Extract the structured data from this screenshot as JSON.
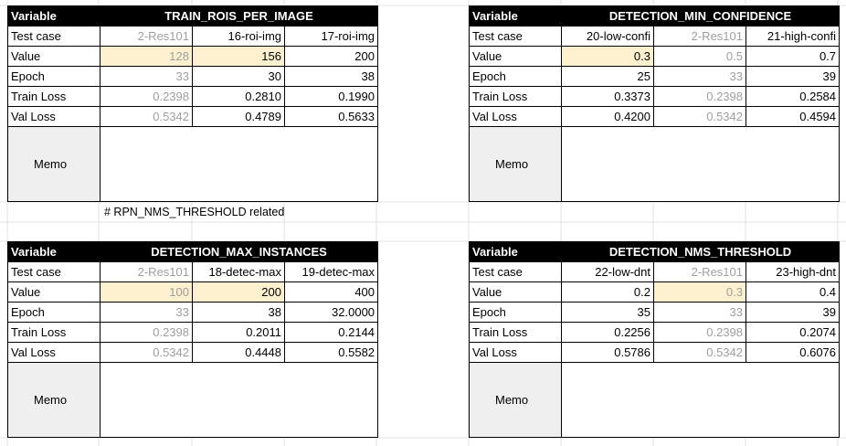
{
  "header_label": "Variable",
  "memo_label": "Memo",
  "row_labels": [
    "Test case",
    "Value",
    "Epoch",
    "Train Loss",
    "Val Loss"
  ],
  "note": "# RPN_NMS_THRESHOLD related",
  "colors": {
    "header_bg": "#000000",
    "header_text": "#ffffff",
    "highlight": "#fdf0cf",
    "dim_text": "#9e9e9e",
    "memo_bg": "#efefef"
  },
  "tables": [
    {
      "variable": "TRAIN_ROIS_PER_IMAGE",
      "highlight_col": [
        0,
        1
      ],
      "dim_col": 0,
      "columns": [
        {
          "test_case": "2-Res101",
          "value": "128",
          "epoch": "33",
          "train_loss": "0.2398",
          "val_loss": "0.5342"
        },
        {
          "test_case": "16-roi-img",
          "value": "156",
          "epoch": "30",
          "train_loss": "0.2810",
          "val_loss": "0.4789"
        },
        {
          "test_case": "17-roi-img",
          "value": "200",
          "epoch": "38",
          "train_loss": "0.1990",
          "val_loss": "0.5633"
        }
      ]
    },
    {
      "variable": "DETECTION_MIN_CONFIDENCE",
      "highlight_col": [
        0
      ],
      "dim_col": 1,
      "columns": [
        {
          "test_case": "20-low-confi",
          "value": "0.3",
          "epoch": "25",
          "train_loss": "0.3373",
          "val_loss": "0.4200"
        },
        {
          "test_case": "2-Res101",
          "value": "0.5",
          "epoch": "33",
          "train_loss": "0.2398",
          "val_loss": "0.5342"
        },
        {
          "test_case": "21-high-confi",
          "value": "0.7",
          "epoch": "39",
          "train_loss": "0.2584",
          "val_loss": "0.4594"
        }
      ]
    },
    {
      "variable": "DETECTION_MAX_INSTANCES",
      "highlight_col": [
        0,
        1
      ],
      "dim_col": 0,
      "columns": [
        {
          "test_case": "2-Res101",
          "value": "100",
          "epoch": "33",
          "train_loss": "0.2398",
          "val_loss": "0.5342"
        },
        {
          "test_case": "18-detec-max",
          "value": "200",
          "epoch": "38",
          "train_loss": "0.2011",
          "val_loss": "0.4448"
        },
        {
          "test_case": "19-detec-max",
          "value": "400",
          "epoch": "32.0000",
          "train_loss": "0.2144",
          "val_loss": "0.5582"
        }
      ]
    },
    {
      "variable": "DETECTION_NMS_THRESHOLD",
      "highlight_col": [
        1
      ],
      "dim_col": 1,
      "columns": [
        {
          "test_case": "22-low-dnt",
          "value": "0.2",
          "epoch": "35",
          "train_loss": "0.2256",
          "val_loss": "0.5786"
        },
        {
          "test_case": "2-Res101",
          "value": "0.3",
          "epoch": "33",
          "train_loss": "0.2398",
          "val_loss": "0.5342"
        },
        {
          "test_case": "23-high-dnt",
          "value": "0.4",
          "epoch": "39",
          "train_loss": "0.2074",
          "val_loss": "0.6076"
        }
      ]
    }
  ]
}
